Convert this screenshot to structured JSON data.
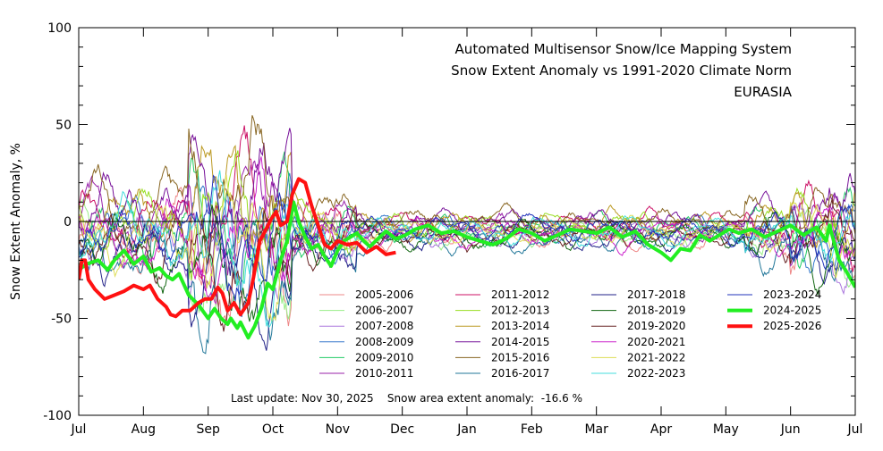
{
  "chart_data": {
    "type": "line",
    "title": [
      "Automated  Multisensor Snow/Ice Mapping System",
      "Snow Extent Anomaly vs 1991-2020 Climate Norm",
      "EURASIA"
    ],
    "ylabel": "Snow Extent Anomaly, %",
    "xlabel": "",
    "ylim": [
      -100,
      100
    ],
    "yticks": [
      100,
      50,
      0,
      -50,
      -100
    ],
    "months": [
      "Jul",
      "Aug",
      "Sep",
      "Oct",
      "Nov",
      "Dec",
      "Jan",
      "Feb",
      "Mar",
      "Apr",
      "May",
      "Jun",
      "Jul"
    ],
    "footer": "Last update: Nov 30, 2025    Snow area extent anomaly:  -16.6 %",
    "highlight_series": [
      {
        "name": "2024-2025",
        "color": "#22ee22",
        "width": 4,
        "points": [
          [
            0.0,
            -25
          ],
          [
            0.12,
            -22
          ],
          [
            0.3,
            -20
          ],
          [
            0.45,
            -25
          ],
          [
            0.55,
            -20
          ],
          [
            0.7,
            -15
          ],
          [
            0.85,
            -22
          ],
          [
            1.0,
            -18
          ],
          [
            1.12,
            -26
          ],
          [
            1.25,
            -24
          ],
          [
            1.35,
            -28
          ],
          [
            1.45,
            -30
          ],
          [
            1.55,
            -27
          ],
          [
            1.7,
            -38
          ],
          [
            1.85,
            -43
          ],
          [
            2.0,
            -50
          ],
          [
            2.1,
            -45
          ],
          [
            2.2,
            -50
          ],
          [
            2.3,
            -53
          ],
          [
            2.35,
            -50
          ],
          [
            2.45,
            -55
          ],
          [
            2.5,
            -52
          ],
          [
            2.62,
            -60
          ],
          [
            2.72,
            -54
          ],
          [
            2.82,
            -45
          ],
          [
            2.92,
            -32
          ],
          [
            3.0,
            -35
          ],
          [
            3.12,
            -20
          ],
          [
            3.22,
            -10
          ],
          [
            3.32,
            10
          ],
          [
            3.4,
            0
          ],
          [
            3.5,
            -8
          ],
          [
            3.6,
            -14
          ],
          [
            3.7,
            -12
          ],
          [
            3.8,
            -18
          ],
          [
            3.9,
            -23
          ],
          [
            4.0,
            -15
          ],
          [
            4.1,
            -10
          ],
          [
            4.2,
            -8
          ],
          [
            4.3,
            -6
          ],
          [
            4.4,
            -10
          ],
          [
            4.5,
            -13
          ],
          [
            4.62,
            -9
          ],
          [
            4.75,
            -5
          ],
          [
            4.9,
            -9
          ],
          [
            5.05,
            -7
          ],
          [
            5.2,
            -4
          ],
          [
            5.4,
            -2
          ],
          [
            5.6,
            -6
          ],
          [
            5.8,
            -5
          ],
          [
            6.0,
            -8
          ],
          [
            6.2,
            -10
          ],
          [
            6.4,
            -12
          ],
          [
            6.6,
            -9
          ],
          [
            6.8,
            -4
          ],
          [
            7.0,
            -6
          ],
          [
            7.2,
            -10
          ],
          [
            7.4,
            -7
          ],
          [
            7.6,
            -4
          ],
          [
            7.8,
            -5
          ],
          [
            8.0,
            -6
          ],
          [
            8.2,
            -3
          ],
          [
            8.4,
            -8
          ],
          [
            8.6,
            -5
          ],
          [
            8.8,
            -12
          ],
          [
            9.0,
            -16
          ],
          [
            9.15,
            -20
          ],
          [
            9.3,
            -14
          ],
          [
            9.45,
            -15
          ],
          [
            9.6,
            -7
          ],
          [
            9.75,
            -10
          ],
          [
            9.9,
            -7
          ],
          [
            10.05,
            -4
          ],
          [
            10.2,
            -6
          ],
          [
            10.4,
            -4
          ],
          [
            10.6,
            -8
          ],
          [
            10.8,
            -5
          ],
          [
            11.0,
            -2
          ],
          [
            11.2,
            -7
          ],
          [
            11.4,
            -3
          ],
          [
            11.55,
            -10
          ],
          [
            11.6,
            -2
          ],
          [
            11.75,
            -20
          ],
          [
            11.85,
            -25
          ],
          [
            11.95,
            -31
          ],
          [
            12.0,
            -34
          ]
        ]
      },
      {
        "name": "2025-2026",
        "color": "#ff1111",
        "width": 4,
        "points": [
          [
            0.0,
            -30
          ],
          [
            0.05,
            -20
          ],
          [
            0.1,
            -20
          ],
          [
            0.15,
            -30
          ],
          [
            0.25,
            -35
          ],
          [
            0.4,
            -40
          ],
          [
            0.55,
            -38
          ],
          [
            0.7,
            -36
          ],
          [
            0.85,
            -33
          ],
          [
            1.0,
            -35
          ],
          [
            1.1,
            -33
          ],
          [
            1.22,
            -40
          ],
          [
            1.35,
            -44
          ],
          [
            1.42,
            -48
          ],
          [
            1.5,
            -49
          ],
          [
            1.6,
            -46
          ],
          [
            1.72,
            -46
          ],
          [
            1.85,
            -42
          ],
          [
            1.95,
            -40
          ],
          [
            2.05,
            -40
          ],
          [
            2.15,
            -34
          ],
          [
            2.22,
            -37
          ],
          [
            2.3,
            -46
          ],
          [
            2.4,
            -42
          ],
          [
            2.5,
            -48
          ],
          [
            2.62,
            -42
          ],
          [
            2.7,
            -29
          ],
          [
            2.8,
            -10
          ],
          [
            2.88,
            -5
          ],
          [
            2.97,
            1
          ],
          [
            3.05,
            5
          ],
          [
            3.12,
            -2
          ],
          [
            3.22,
            0
          ],
          [
            3.3,
            14
          ],
          [
            3.4,
            22
          ],
          [
            3.5,
            20
          ],
          [
            3.6,
            8
          ],
          [
            3.7,
            -2
          ],
          [
            3.8,
            -12
          ],
          [
            3.9,
            -14
          ],
          [
            4.0,
            -10
          ],
          [
            4.15,
            -12
          ],
          [
            4.3,
            -11
          ],
          [
            4.45,
            -16
          ],
          [
            4.6,
            -13
          ],
          [
            4.75,
            -17
          ],
          [
            4.9,
            -16
          ]
        ]
      }
    ]
  },
  "legend": [
    {
      "label": "2005-2006",
      "color": "#ee8888"
    },
    {
      "label": "2006-2007",
      "color": "#99ee88"
    },
    {
      "label": "2007-2008",
      "color": "#aa77dd"
    },
    {
      "label": "2008-2009",
      "color": "#3377cc"
    },
    {
      "label": "2009-2010",
      "color": "#22cc66"
    },
    {
      "label": "2010-2011",
      "color": "#9922aa"
    },
    {
      "label": "2011-2012",
      "color": "#cc1166"
    },
    {
      "label": "2012-2013",
      "color": "#99dd22"
    },
    {
      "label": "2013-2014",
      "color": "#bb9922"
    },
    {
      "label": "2014-2015",
      "color": "#771199"
    },
    {
      "label": "2015-2016",
      "color": "#886622"
    },
    {
      "label": "2016-2017",
      "color": "#227799"
    },
    {
      "label": "2017-2018",
      "color": "#222288"
    },
    {
      "label": "2018-2019",
      "color": "#116611"
    },
    {
      "label": "2019-2020",
      "color": "#662222"
    },
    {
      "label": "2020-2021",
      "color": "#cc22cc"
    },
    {
      "label": "2021-2022",
      "color": "#dddd55"
    },
    {
      "label": "2022-2023",
      "color": "#44dddd"
    },
    {
      "label": "2023-2024",
      "color": "#2233bb"
    },
    {
      "label": "2024-2025",
      "color": "#22ee22"
    },
    {
      "label": "2025-2026",
      "color": "#ff1111"
    }
  ]
}
